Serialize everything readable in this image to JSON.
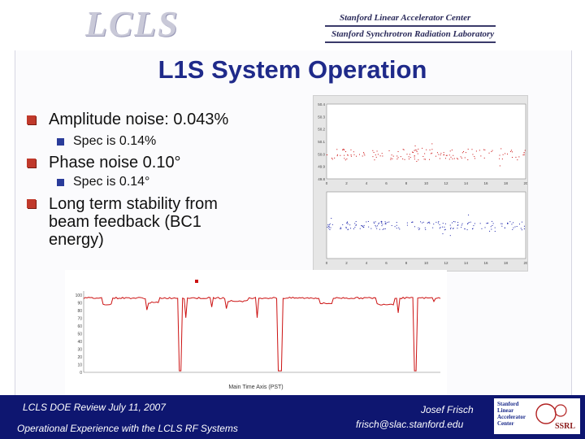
{
  "header": {
    "logo_text": "LCLS",
    "org_line1": "Stanford Linear Accelerator Center",
    "org_line2": "Stanford Synchrotron Radiation Laboratory"
  },
  "slide": {
    "title": "L1S System Operation",
    "bullets": [
      {
        "text": "Amplitude noise: 0.043%",
        "sub": "Spec is 0.14%"
      },
      {
        "text": "Phase noise 0.10°",
        "sub": "Spec is 0.14°"
      },
      {
        "lines": [
          "Long term stability from",
          "beam feedback (BC1",
          "energy)"
        ]
      }
    ]
  },
  "chart_data": [
    {
      "type": "scatter",
      "title": "",
      "xlabel": "",
      "ylabel": "",
      "ylim": [
        49.8,
        50.4
      ],
      "xlim": [
        0,
        20
      ],
      "y_ticks": [
        49.8,
        49.9,
        50,
        50.1,
        50.2,
        50.3,
        50.4
      ],
      "x_ticks": [
        0,
        2,
        4,
        6,
        8,
        10,
        12,
        14,
        16,
        18,
        20
      ],
      "color": "#cc1111"
    },
    {
      "type": "scatter",
      "title": "",
      "xlabel": "",
      "ylabel": "",
      "ylim": [
        25.3,
        26.0
      ],
      "xlim": [
        0,
        20
      ],
      "x_ticks": [
        0,
        2,
        4,
        6,
        8,
        10,
        12,
        14,
        16,
        18,
        20
      ],
      "color": "#1a22aa"
    },
    {
      "type": "line",
      "title": "",
      "xlabel": "Main Time Axis (PST)",
      "ylabel": "",
      "legend_entry": "",
      "y_ticks": [
        0,
        10,
        20,
        30,
        40,
        50,
        60,
        70,
        80,
        90,
        100
      ],
      "ylim": [
        0,
        105
      ],
      "color": "#cc1111",
      "legend": "top"
    }
  ],
  "footer": {
    "review": "LCLS DOE Review  July 11, 2007",
    "talk": "Operational Experience with the LCLS RF Systems",
    "author": "Josef Frisch",
    "email": "frisch@slac.stanford.edu",
    "badge_text": [
      "Stanford",
      "Linear",
      "Accelerator",
      "Center"
    ],
    "badge_mark": "SSRL"
  }
}
